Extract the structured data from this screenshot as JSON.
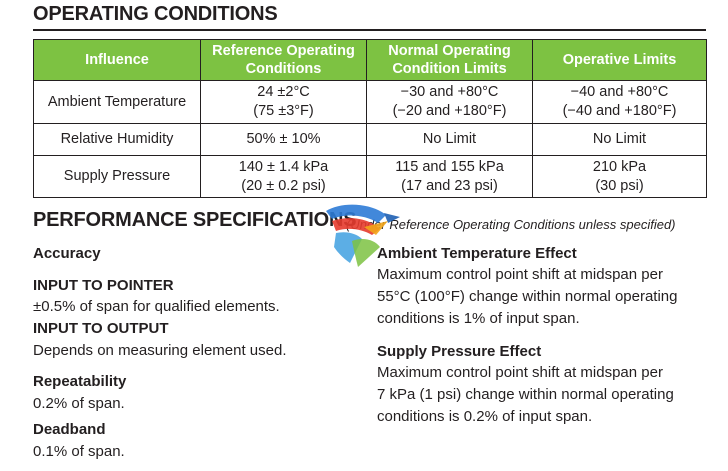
{
  "operating": {
    "title": "OPERATING CONDITIONS",
    "headers": [
      "Influence",
      "Reference Operating Conditions",
      "Normal Operating Condition Limits",
      "Operative Limits"
    ],
    "header_lines": [
      [
        "Influence"
      ],
      [
        "Reference Operating",
        "Conditions"
      ],
      [
        "Normal Operating",
        "Condition Limits"
      ],
      [
        "Operative Limits"
      ]
    ],
    "rows": [
      {
        "influence": "Ambient Temperature",
        "reference": [
          "24 ±2°C",
          "(75 ±3°F)"
        ],
        "normal": [
          "−30 and +80°C",
          "(−20 and +180°F)"
        ],
        "operative": [
          "−40 and +80°C",
          "(−40 and +180°F)"
        ]
      },
      {
        "influence": "Relative Humidity",
        "reference": [
          "50% ± 10%"
        ],
        "normal": [
          "No Limit"
        ],
        "operative": [
          "No Limit"
        ]
      },
      {
        "influence": "Supply Pressure",
        "reference": [
          "140 ± 1.4 kPa",
          "(20 ± 0.2 psi)"
        ],
        "normal": [
          "115 and 155 kPa",
          "(17 and 23 psi)"
        ],
        "operative": [
          "210 kPa",
          "(30 psi)"
        ]
      }
    ],
    "header_color": "#7dc242"
  },
  "performance": {
    "title": "PERFORMANCE SPECIFICATIONS",
    "note": "(Under Reference Operating Conditions unless specified)",
    "accuracy_label": "Accuracy",
    "input_pointer_label": "INPUT TO POINTER",
    "input_pointer_text": "±0.5% of span for qualified elements.",
    "input_output_label": "INPUT TO OUTPUT",
    "input_output_text": "Depends on measuring element used.",
    "repeatability_label": "Repeatability",
    "repeatability_text": "0.2% of span.",
    "deadband_label": "Deadband",
    "deadband_text": "0.1% of span.",
    "ambient_label": "Ambient Temperature Effect",
    "ambient_lines": [
      "Maximum control point shift at midspan per",
      "55°C (100°F) change within normal operating",
      "conditions is 1% of input span."
    ],
    "supply_label": "Supply Pressure Effect",
    "supply_lines": [
      "Maximum control point shift at midspan per",
      "7 kPa (1 psi) change within normal operating",
      "conditions is 0.2% of input span."
    ]
  },
  "watermark_icon": "watermark-logo-icon"
}
